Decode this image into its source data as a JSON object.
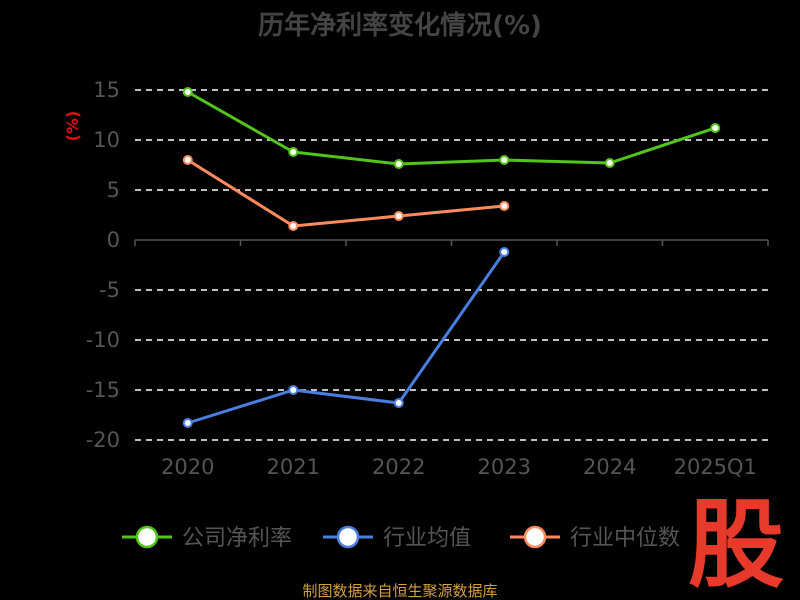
{
  "chart_data": {
    "type": "line",
    "title": "历年净利率变化情况(%)",
    "ylabel": "(%)",
    "categories": [
      "2020",
      "2021",
      "2022",
      "2023",
      "2024",
      "2025Q1"
    ],
    "yticks": [
      "15",
      "10",
      "5",
      "0",
      "-5",
      "-10",
      "-15",
      "-20"
    ],
    "ylim": [
      -20,
      15
    ],
    "grid": true,
    "legend_position": "bottom",
    "series": [
      {
        "name": "公司净利率",
        "color": "#52c41a",
        "values": [
          14.8,
          8.8,
          7.6,
          8.0,
          7.7,
          11.2
        ]
      },
      {
        "name": "行业均值",
        "color": "#4a7fe0",
        "values": [
          -18.3,
          -15.0,
          -16.3,
          -1.2,
          null,
          null
        ]
      },
      {
        "name": "行业中位数",
        "color": "#ff8a5c",
        "values": [
          8.0,
          1.4,
          2.4,
          3.4,
          null,
          null
        ]
      }
    ]
  },
  "source": "制图数据来自恒生聚源数据库",
  "logo": "股"
}
